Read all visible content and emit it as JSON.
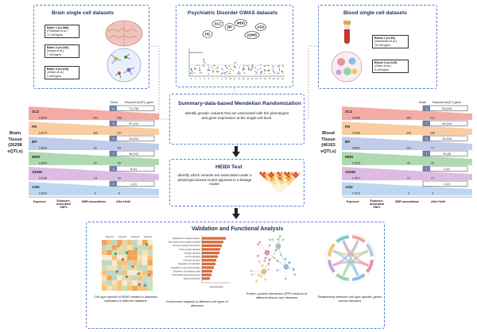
{
  "brain": {
    "title": "Brain single cell datasets",
    "datasets": [
      {
        "name": "Brain 1 (n=388)",
        "ref": "(Pradhani et al.)",
        "types": "17 cell types"
      },
      {
        "name": "Brain 2 (n=192)",
        "ref": "(Bryois et al.)",
        "types": "7 cell types"
      },
      {
        "name": "Brain 3 (n=315)",
        "ref": "(Jerber et al.)",
        "types": "2 cell types"
      }
    ]
  },
  "blood": {
    "title": "Blood single cell datasets",
    "datasets": [
      {
        "name": "Blood 1 (n=91)",
        "ref": "(Schmiedel et al.)",
        "types": "15 cell types"
      },
      {
        "name": "Blood 2 (n=120)",
        "ref": "(Oelen et al.)",
        "types": "5 cell types"
      }
    ]
  },
  "gwas": {
    "title": "Psychiatric Disorder GWAS datasets",
    "disorders": [
      "SCZ",
      "PD",
      "BP",
      "MDD",
      "ADHD",
      "ASD"
    ],
    "ylabel": "Significance",
    "chromosomes": [
      "1",
      "2",
      "3",
      "4",
      "5",
      "6",
      "7",
      "8",
      "9",
      "10",
      "11",
      "12",
      "13",
      "14",
      "15",
      "16",
      "17",
      "18",
      "19",
      "20",
      "21",
      "22"
    ]
  },
  "smr": {
    "title": "Summary-data-based Mendelian Randomization",
    "text": "Identify genetic variants that are associated with the phenotypes and gene expression at the single-cell level."
  },
  "heidi": {
    "title": "HEIDI Test",
    "text": "Identify which variants are associated under a pleiotropic/causal model opposed to a linkage model."
  },
  "validation": {
    "title": "Validation and Functional Analysis",
    "captions": [
      "Cell type specific eGENE related to diseases replicated in different datasets",
      "Enrichment analysis in different cell types of diseases",
      "Protein–protein interaction (PPI) network of different tissues and diseases",
      "Relationship between cell type specific genes across diseases"
    ],
    "heatmap_cols": [
      "Dataset1",
      "Dataset2",
      "Dataset3",
      "Dataset4"
    ],
    "enrichment_terms": [
      "Regulation of synaptic plasticity",
      "Anterograde trans-synaptic signaling",
      "Chemical synaptic transmission",
      "Trans-synaptic signaling",
      "Synaptic signaling",
      "Cell-cell signaling",
      "Cell communication",
      "Regulation of localization",
      "Regulation of cell communication",
      "Regulation of biological quality",
      "Multicellular organismal process",
      "Signal transduction"
    ],
    "enrichment_xlabel": "-log10(pvalue)"
  },
  "brain_table": {
    "side_label": [
      "Brain",
      "Tissue",
      "(26298",
      "eQTLs)"
    ],
    "header_novel": "Novel",
    "header_reported": "Reported (eQTL) gene",
    "footer": [
      "Exposure",
      "Exposure-associated SNPs",
      "SMR associations",
      "After Heidi"
    ],
    "rows": [
      {
        "name": "SCZ",
        "exposure": "13028",
        "smr": "341",
        "heidi": "258",
        "novel": "12",
        "reported": "71 (78)",
        "color": "#f3a29c"
      },
      {
        "name": "PD",
        "exposure": "13075",
        "smr": "325",
        "heidi": "197",
        "novel": "9",
        "reported": "97 (41)",
        "color": "#f7c89a"
      },
      {
        "name": "BP",
        "exposure": "13028",
        "smr": "62",
        "heidi": "54",
        "novel": "5",
        "reported": "19 (10)",
        "color": "#b9c6e8"
      },
      {
        "name": "MDD",
        "exposure": "12840",
        "smr": "57",
        "heidi": "49",
        "novel": "7",
        "reported": "18 (10)",
        "color": "#a6d6a8"
      },
      {
        "name": "ADHD",
        "exposure": "12739",
        "smr": "14",
        "heidi": "10",
        "novel": "1",
        "reported": "8 (4)",
        "color": "#d9b5e0"
      },
      {
        "name": "ASD",
        "exposure": "12919",
        "smr": "6",
        "heidi": "6",
        "novel": "2",
        "reported": "1 (1)",
        "color": "#b6d3ee"
      }
    ]
  },
  "blood_table": {
    "side_label": [
      "Blood",
      "Tissue",
      "(46163",
      "eQTLs)"
    ],
    "header_novel": "Novel",
    "header_reported": "Reported (eQTL) gene",
    "footer": [
      "Exposure",
      "Exposure-associated SNPs",
      "SMR associations",
      "After Heidi"
    ],
    "rows": [
      {
        "name": "SCZ",
        "exposure": "18308",
        "smr": "369",
        "heidi": "212",
        "novel": "4",
        "reported": "54 (49)",
        "color": "#f3a29c"
      },
      {
        "name": "PD",
        "exposure": "18188",
        "smr": "343",
        "heidi": "206",
        "novel": "7",
        "reported": "43 (24)",
        "color": "#f7c89a"
      },
      {
        "name": "BP",
        "exposure": "18062",
        "smr": "101",
        "heidi": "77",
        "novel": "6",
        "reported": "19 (15)",
        "color": "#b9c6e8"
      },
      {
        "name": "MDD",
        "exposure": "17815",
        "smr": "42",
        "heidi": "39",
        "novel": "1",
        "reported": "10 (8)",
        "color": "#a6d6a8"
      },
      {
        "name": "ADHD",
        "exposure": "17627",
        "smr": "17",
        "heidi": "17",
        "novel": "1",
        "reported": "2 (2)",
        "color": "#d9b5e0"
      },
      {
        "name": "ASD",
        "exposure": "17912",
        "smr": "2",
        "heidi": "2",
        "novel": "",
        "reported": "2 (2)",
        "color": "#b6d3ee"
      }
    ]
  }
}
